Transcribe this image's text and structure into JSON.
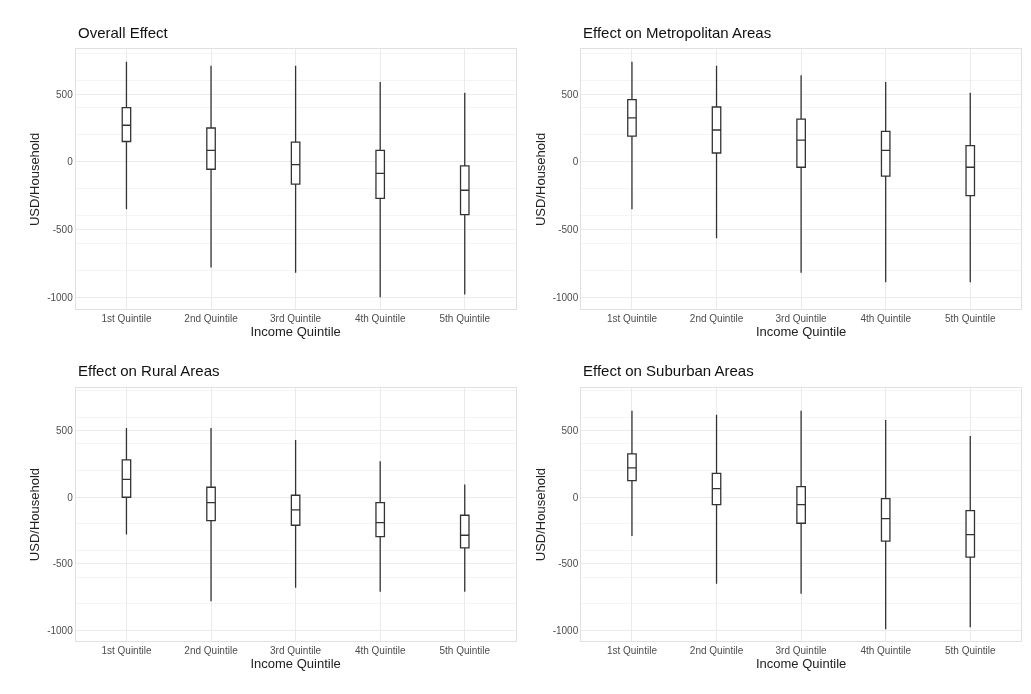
{
  "chart_data": [
    {
      "type": "box",
      "title": "Overall Effect",
      "xlabel": "Income Quintile",
      "ylabel": "USD/Household",
      "categories": [
        "1st Quintile",
        "2nd Quintile",
        "3rd Quintile",
        "4th Quintile",
        "5th Quintile"
      ],
      "ylim": [
        -1090,
        830
      ],
      "yticks": [
        -1000,
        -500,
        0,
        500
      ],
      "grid": true,
      "boxes": [
        {
          "low": -350,
          "q1": 150,
          "median": 270,
          "q3": 400,
          "high": 740
        },
        {
          "low": -780,
          "q1": -55,
          "median": 85,
          "q3": 250,
          "high": 710
        },
        {
          "low": -820,
          "q1": -165,
          "median": -20,
          "q3": 145,
          "high": 710
        },
        {
          "low": -1000,
          "q1": -270,
          "median": -85,
          "q3": 85,
          "high": 590
        },
        {
          "low": -980,
          "q1": -390,
          "median": -210,
          "q3": -30,
          "high": 510
        }
      ]
    },
    {
      "type": "box",
      "title": "Effect on Metropolitan Areas",
      "xlabel": "Income Quintile",
      "ylabel": "USD/Household",
      "categories": [
        "1st Quintile",
        "2nd Quintile",
        "3rd Quintile",
        "4th Quintile",
        "5th Quintile"
      ],
      "ylim": [
        -1090,
        830
      ],
      "yticks": [
        -1000,
        -500,
        0,
        500
      ],
      "grid": true,
      "boxes": [
        {
          "low": -350,
          "q1": 190,
          "median": 325,
          "q3": 460,
          "high": 740
        },
        {
          "low": -565,
          "q1": 65,
          "median": 235,
          "q3": 405,
          "high": 710
        },
        {
          "low": -820,
          "q1": -40,
          "median": 160,
          "q3": 315,
          "high": 640
        },
        {
          "low": -890,
          "q1": -105,
          "median": 85,
          "q3": 225,
          "high": 590
        },
        {
          "low": -890,
          "q1": -250,
          "median": -40,
          "q3": 120,
          "high": 510
        }
      ]
    },
    {
      "type": "box",
      "title": "Effect on Rural Areas",
      "xlabel": "Income Quintile",
      "ylabel": "USD/Household",
      "categories": [
        "1st Quintile",
        "2nd Quintile",
        "3rd Quintile",
        "4th Quintile",
        "5th Quintile"
      ],
      "ylim": [
        -1080,
        820
      ],
      "yticks": [
        -1000,
        -500,
        0,
        500
      ],
      "grid": true,
      "boxes": [
        {
          "low": -280,
          "q1": 0,
          "median": 135,
          "q3": 280,
          "high": 520
        },
        {
          "low": -780,
          "q1": -175,
          "median": -40,
          "q3": 75,
          "high": 520
        },
        {
          "low": -680,
          "q1": -210,
          "median": -95,
          "q3": 15,
          "high": 430
        },
        {
          "low": -710,
          "q1": -295,
          "median": -190,
          "q3": -40,
          "high": 270
        },
        {
          "low": -710,
          "q1": -380,
          "median": -285,
          "q3": -135,
          "high": 95
        }
      ]
    },
    {
      "type": "box",
      "title": "Effect on Suburban Areas",
      "xlabel": "Income Quintile",
      "ylabel": "USD/Household",
      "categories": [
        "1st Quintile",
        "2nd Quintile",
        "3rd Quintile",
        "4th Quintile",
        "5th Quintile"
      ],
      "ylim": [
        -1080,
        820
      ],
      "yticks": [
        -1000,
        -500,
        0,
        500
      ],
      "grid": true,
      "boxes": [
        {
          "low": -290,
          "q1": 125,
          "median": 220,
          "q3": 325,
          "high": 650
        },
        {
          "low": -650,
          "q1": -55,
          "median": 65,
          "q3": 180,
          "high": 620
        },
        {
          "low": -725,
          "q1": -195,
          "median": -55,
          "q3": 80,
          "high": 650
        },
        {
          "low": -990,
          "q1": -330,
          "median": -160,
          "q3": -10,
          "high": 580
        },
        {
          "low": -975,
          "q1": -450,
          "median": -280,
          "q3": -100,
          "high": 460
        }
      ]
    }
  ]
}
